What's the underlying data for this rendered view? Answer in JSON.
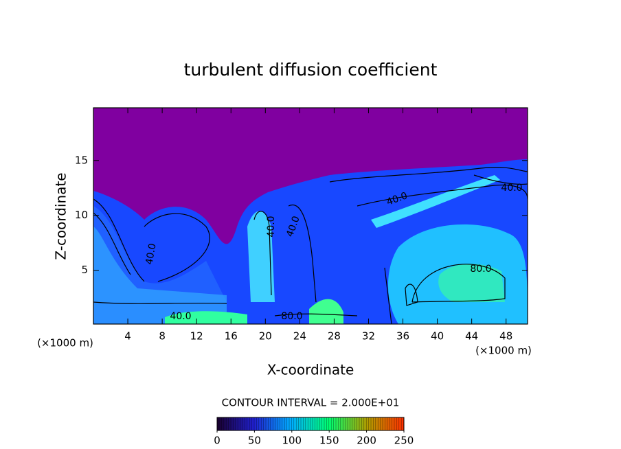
{
  "chart_data": {
    "type": "contour",
    "title": "turbulent diffusion coefficient",
    "x_label": "X-coordinate",
    "y_label": "Z-coordinate",
    "x_unit_labels": [
      "(×1000 m)",
      "(×1000 m)"
    ],
    "xlim": [
      0,
      50.5
    ],
    "xticks": [
      4,
      8,
      12,
      16,
      20,
      24,
      28,
      32,
      36,
      40,
      44,
      48
    ],
    "ylim": [
      0.1,
      19.8
    ],
    "yticks": [
      5,
      10,
      15
    ],
    "contour_labels": [
      "40.0",
      "40.0",
      "80.0",
      "40.0",
      "40.0",
      "40.0",
      "80.0",
      "40.0"
    ],
    "colorbar": {
      "title": "CONTOUR INTERVAL = 2.000E+01",
      "lim": [
        0,
        250
      ],
      "ticks": [
        0,
        50,
        100,
        150,
        200,
        250
      ],
      "colors": [
        "#1a0030",
        "#2020d0",
        "#00b0ff",
        "#00ff70",
        "#b0a000",
        "#ff3000"
      ]
    }
  }
}
